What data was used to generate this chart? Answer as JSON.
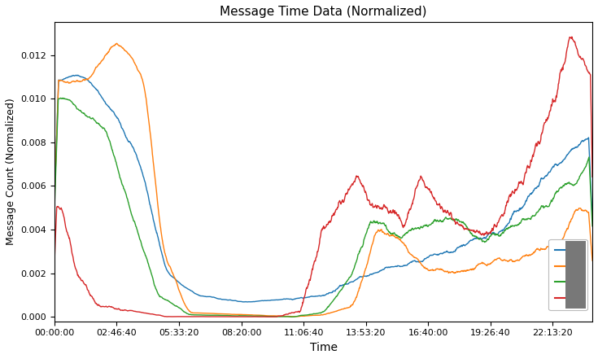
{
  "title": "Message Time Data (Normalized)",
  "xlabel": "Time",
  "ylabel": "Message Count (Normalized)",
  "line_colors": [
    "#1f77b4",
    "#ff7f0e",
    "#2ca02c",
    "#d62728"
  ],
  "xlim": [
    0,
    86400
  ],
  "ylim": [
    -0.0002,
    0.0135
  ],
  "xtick_interval": 10000,
  "figsize": [
    7.35,
    4.41
  ],
  "dpi": 100,
  "gray_box_color": "#787878"
}
